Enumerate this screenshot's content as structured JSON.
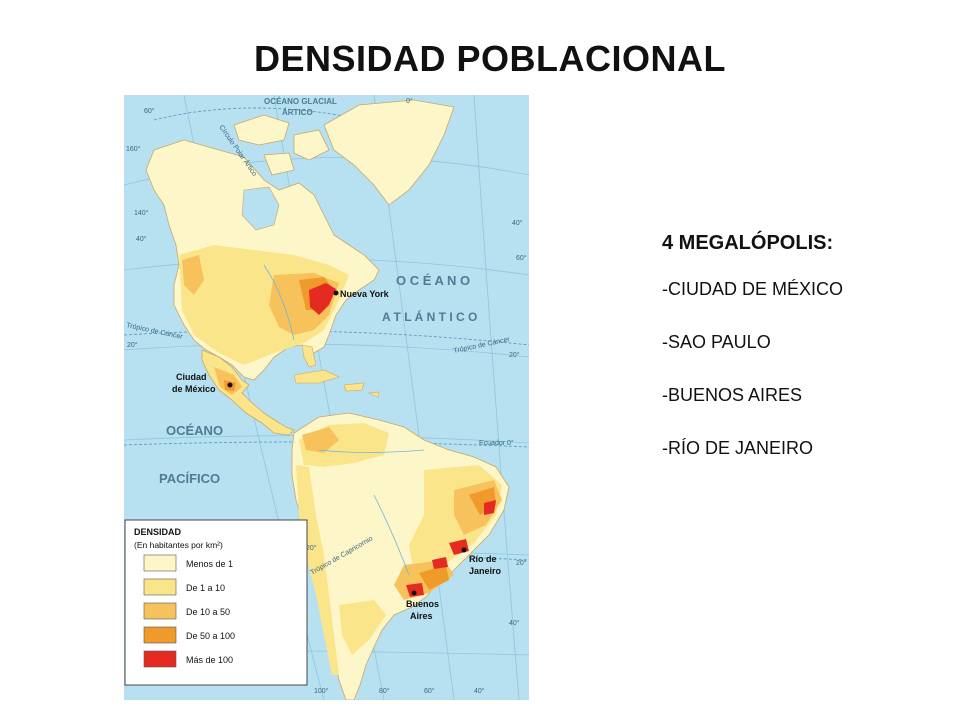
{
  "title": "DENSIDAD POBLACIONAL",
  "megalopolis": {
    "heading": "4 MEGALÓPOLIS:",
    "items": [
      "-CIUDAD DE MÉXICO",
      "-SAO PAULO",
      "-BUENOS AIRES",
      "-RÍO DE JANEIRO"
    ]
  },
  "map": {
    "ocean_labels": {
      "arctic_1": "OCÉANO GLACIAL",
      "arctic_2": "ÁRTICO",
      "atlantic_1": "O C É A N O",
      "atlantic_2": "A T L Á N T I C O",
      "pacific_1": "OCÉANO",
      "pacific_2": "PACÍFICO"
    },
    "line_labels": {
      "arctic_circle": "Círculo Polar Ártico",
      "cancer_left": "Trópico de Cáncer",
      "cancer_right": "Trópico de Cáncer",
      "equator": "Ecuador 0°",
      "capricorn": "Trópico de Capricornio"
    },
    "degree_labels": [
      "60°",
      "160°",
      "140°",
      "40°",
      "20°",
      "20°",
      "20°",
      "40°",
      "40°",
      "60°",
      "0°",
      "100°",
      "80°",
      "60°",
      "40°",
      "20°"
    ],
    "cities": {
      "new_york": "Nueva York",
      "mexico_1": "Ciudad",
      "mexico_2": "de México",
      "rio_1": "Río de",
      "rio_2": "Janeiro",
      "bsas_1": "Buenos",
      "bsas_2": "Aires"
    },
    "legend": {
      "title": "DENSIDAD",
      "subtitle": "(En habitantes por km²)",
      "entries": [
        {
          "label": "Menos de 1",
          "color": "#fdf6c8"
        },
        {
          "label": "De 1 a 10",
          "color": "#fbe58a"
        },
        {
          "label": "De 10 a 50",
          "color": "#f7c25c"
        },
        {
          "label": "De 50 a 100",
          "color": "#ef9a2b"
        },
        {
          "label": "Más de 100",
          "color": "#e52a21"
        }
      ]
    },
    "colors": {
      "ocean": "#b7e0f1",
      "low": "#fdf6c8",
      "mid": "#fbe58a",
      "high": "#f7c25c",
      "veryhigh": "#ef9a2b",
      "top": "#e52a21"
    }
  }
}
